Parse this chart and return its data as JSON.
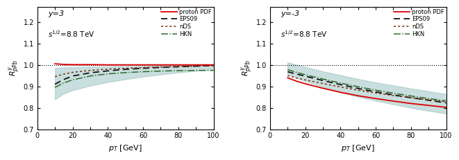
{
  "panel1": {
    "label_y": "y=3",
    "xlim": [
      0,
      100
    ],
    "ylim": [
      0.7,
      1.27
    ],
    "yticks": [
      0.7,
      0.8,
      0.9,
      1.0,
      1.1,
      1.2
    ],
    "xticks": [
      0,
      10,
      20,
      30,
      40,
      50,
      60,
      70,
      80,
      90,
      100
    ],
    "xticklabels": [
      "0",
      "",
      "20",
      "",
      "40",
      "",
      "60",
      "",
      "80",
      "",
      "100"
    ],
    "proton": {
      "x": [
        10,
        15,
        20,
        30,
        40,
        50,
        60,
        70,
        80,
        90,
        100
      ],
      "y": [
        1.005,
        1.002,
        1.001,
        1.001,
        1.0,
        1.0,
        1.0,
        1.0,
        1.0,
        1.0,
        1.0
      ]
    },
    "EPS09": {
      "x": [
        10,
        15,
        20,
        30,
        40,
        50,
        60,
        70,
        80,
        90,
        100
      ],
      "y": [
        0.91,
        0.932,
        0.948,
        0.963,
        0.972,
        0.979,
        0.984,
        0.988,
        0.991,
        0.994,
        0.997
      ]
    },
    "EPS09_upper": {
      "x": [
        10,
        15,
        20,
        30,
        40,
        50,
        60,
        70,
        80,
        90,
        100
      ],
      "y": [
        0.985,
        0.988,
        0.989,
        0.991,
        0.992,
        0.993,
        0.994,
        0.996,
        0.997,
        0.998,
        0.999
      ]
    },
    "EPS09_lower": {
      "x": [
        10,
        15,
        20,
        30,
        40,
        50,
        60,
        70,
        80,
        90,
        100
      ],
      "y": [
        0.84,
        0.866,
        0.882,
        0.903,
        0.92,
        0.933,
        0.945,
        0.955,
        0.964,
        0.972,
        0.98
      ]
    },
    "nDS": {
      "x": [
        10,
        15,
        20,
        30,
        40,
        50,
        60,
        70,
        80,
        90,
        100
      ],
      "y": [
        0.945,
        0.957,
        0.965,
        0.974,
        0.98,
        0.984,
        0.987,
        0.99,
        0.992,
        0.994,
        0.996
      ]
    },
    "HKN": {
      "x": [
        10,
        15,
        20,
        30,
        40,
        50,
        60,
        70,
        80,
        90,
        100
      ],
      "y": [
        0.895,
        0.916,
        0.93,
        0.948,
        0.958,
        0.964,
        0.968,
        0.971,
        0.973,
        0.974,
        0.974
      ]
    }
  },
  "panel2": {
    "label_y": "y=-3",
    "xlim": [
      0,
      100
    ],
    "ylim": [
      0.7,
      1.27
    ],
    "yticks": [
      0.7,
      0.8,
      0.9,
      1.0,
      1.1,
      1.2
    ],
    "xticks": [
      0,
      10,
      20,
      30,
      40,
      50,
      60,
      70,
      80,
      90,
      100
    ],
    "xticklabels": [
      "0",
      "",
      "20",
      "",
      "40",
      "",
      "60",
      "",
      "80",
      "",
      "100"
    ],
    "proton": {
      "x": [
        10,
        15,
        20,
        30,
        40,
        50,
        60,
        70,
        80,
        90,
        100
      ],
      "y": [
        0.94,
        0.924,
        0.912,
        0.891,
        0.872,
        0.856,
        0.843,
        0.831,
        0.82,
        0.811,
        0.802
      ]
    },
    "EPS09": {
      "x": [
        10,
        15,
        20,
        30,
        40,
        50,
        60,
        70,
        80,
        90,
        100
      ],
      "y": [
        0.968,
        0.957,
        0.947,
        0.927,
        0.908,
        0.89,
        0.874,
        0.86,
        0.847,
        0.835,
        0.823
      ]
    },
    "EPS09_upper": {
      "x": [
        10,
        15,
        20,
        30,
        40,
        50,
        60,
        70,
        80,
        90,
        100
      ],
      "y": [
        1.012,
        1.0,
        0.99,
        0.97,
        0.952,
        0.934,
        0.918,
        0.904,
        0.89,
        0.877,
        0.864
      ]
    },
    "EPS09_lower": {
      "x": [
        10,
        15,
        20,
        30,
        40,
        50,
        60,
        70,
        80,
        90,
        100
      ],
      "y": [
        0.958,
        0.94,
        0.924,
        0.898,
        0.873,
        0.851,
        0.833,
        0.816,
        0.8,
        0.786,
        0.773
      ]
    },
    "nDS": {
      "x": [
        10,
        15,
        20,
        30,
        40,
        50,
        60,
        70,
        80,
        90,
        100
      ],
      "y": [
        0.95,
        0.939,
        0.93,
        0.913,
        0.897,
        0.882,
        0.869,
        0.857,
        0.847,
        0.837,
        0.828
      ]
    },
    "HKN": {
      "x": [
        10,
        15,
        20,
        30,
        40,
        50,
        60,
        70,
        80,
        90,
        100
      ],
      "y": [
        0.978,
        0.965,
        0.954,
        0.934,
        0.915,
        0.898,
        0.882,
        0.868,
        0.855,
        0.843,
        0.832
      ]
    }
  },
  "colors": {
    "proton": "#dd0000",
    "EPS09": "#111111",
    "EPS09_band": "#9dc4c4",
    "nDS": "#7a3010",
    "HKN": "#2d6b2d"
  },
  "band_alpha": 0.55
}
